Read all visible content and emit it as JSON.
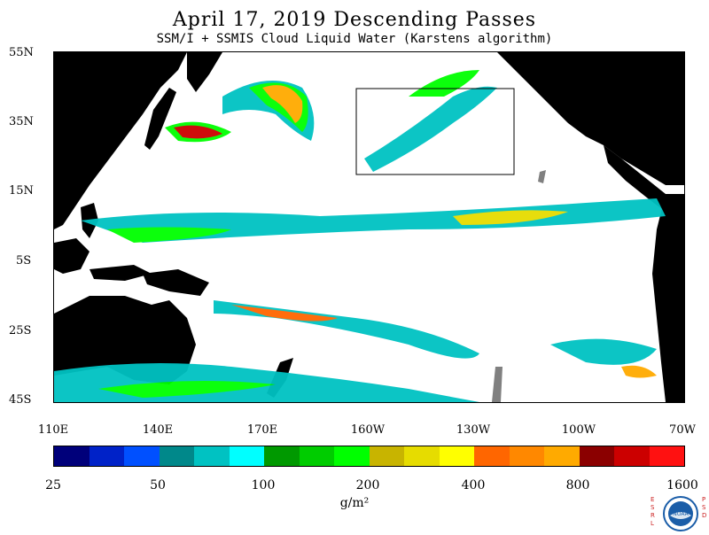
{
  "title": "April 17, 2019  Descending Passes",
  "subtitle": "SSM/I + SSMIS Cloud Liquid Water (Karstens algorithm)",
  "latitude_labels": [
    "55N",
    "35N",
    "15N",
    "5S",
    "25S",
    "45S"
  ],
  "longitude_labels": [
    "110E",
    "140E",
    "170E",
    "160W",
    "130W",
    "100W",
    "70W"
  ],
  "colorbar": {
    "colors": [
      "#00007a",
      "#0022c8",
      "#0050ff",
      "#00888a",
      "#00c2c2",
      "#00ffff",
      "#009900",
      "#00cc00",
      "#00ff00",
      "#c8b400",
      "#e6dc00",
      "#ffff00",
      "#ff6600",
      "#ff8800",
      "#ffaa00",
      "#8b0000",
      "#cc0000",
      "#ff1111"
    ],
    "tick_labels": [
      "25",
      "50",
      "100",
      "200",
      "400",
      "800",
      "1600"
    ],
    "units": "g/m²"
  },
  "logo": {
    "left_letters": "E S R L",
    "right_letters": "P S D",
    "center_text": "NOAA"
  },
  "legend_colors": {
    "land": "#000000",
    "no_cloud": "#ffffff",
    "missing": "#808080"
  }
}
